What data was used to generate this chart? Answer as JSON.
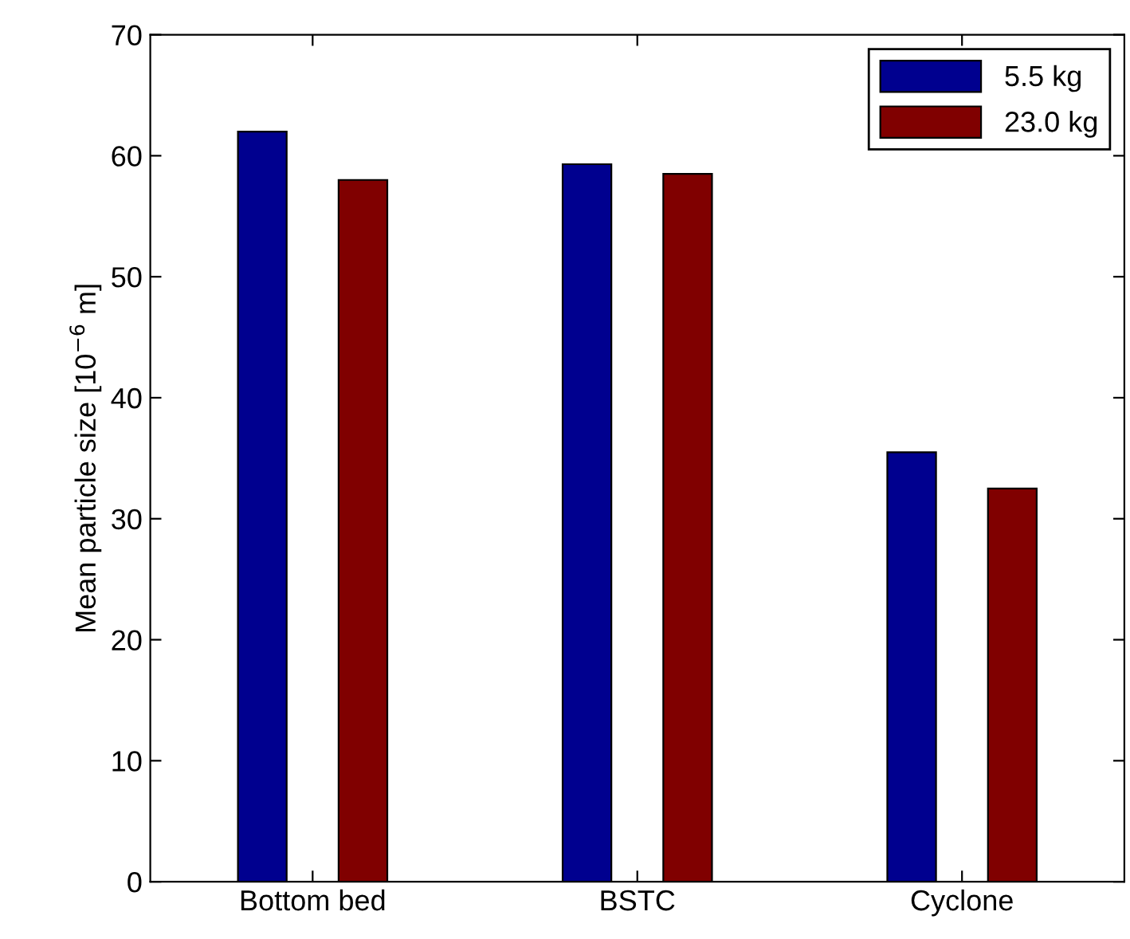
{
  "chart_data": {
    "type": "bar",
    "ylabel": "Mean particle size [10$^{−6}$ m]",
    "categories": [
      "Bottom bed",
      "BSTC",
      "Cyclone"
    ],
    "series": [
      {
        "name": "5.5 kg",
        "color": "#00008f",
        "values": [
          62.0,
          59.3,
          35.5
        ]
      },
      {
        "name": "23.0 kg",
        "color": "#800000",
        "values": [
          58.0,
          58.5,
          32.5
        ]
      }
    ],
    "ylim": [
      0,
      70
    ],
    "yticks": [
      0,
      10,
      20,
      30,
      40,
      50,
      60,
      70
    ],
    "grid": false,
    "legend": "top right"
  }
}
